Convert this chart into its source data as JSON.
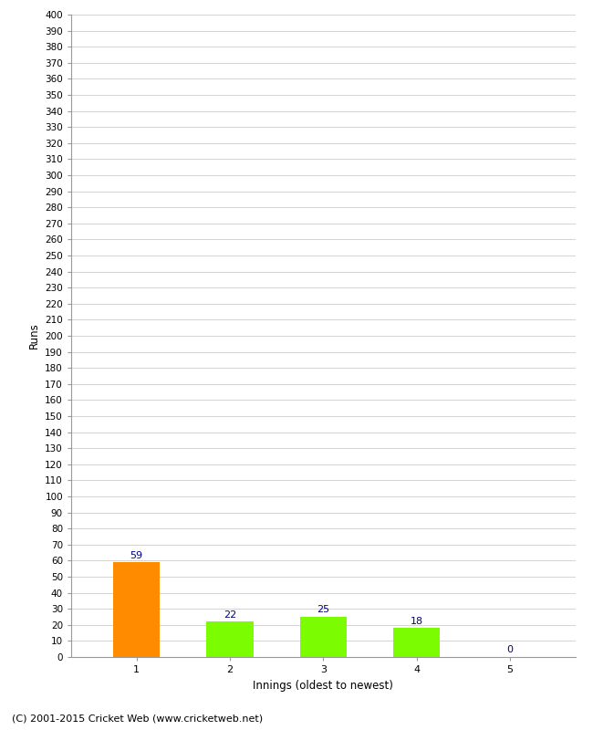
{
  "categories": [
    1,
    2,
    3,
    4,
    5
  ],
  "values": [
    59,
    22,
    25,
    18,
    0
  ],
  "bar_colors": [
    "#ff8c00",
    "#7cfc00",
    "#7cfc00",
    "#7cfc00",
    "#7cfc00"
  ],
  "xlabel": "Innings (oldest to newest)",
  "ylabel": "Runs",
  "ylim": [
    0,
    400
  ],
  "label_color": "#00008b",
  "background_color": "#ffffff",
  "grid_color": "#cccccc",
  "footer": "(C) 2001-2015 Cricket Web (www.cricketweb.net)"
}
